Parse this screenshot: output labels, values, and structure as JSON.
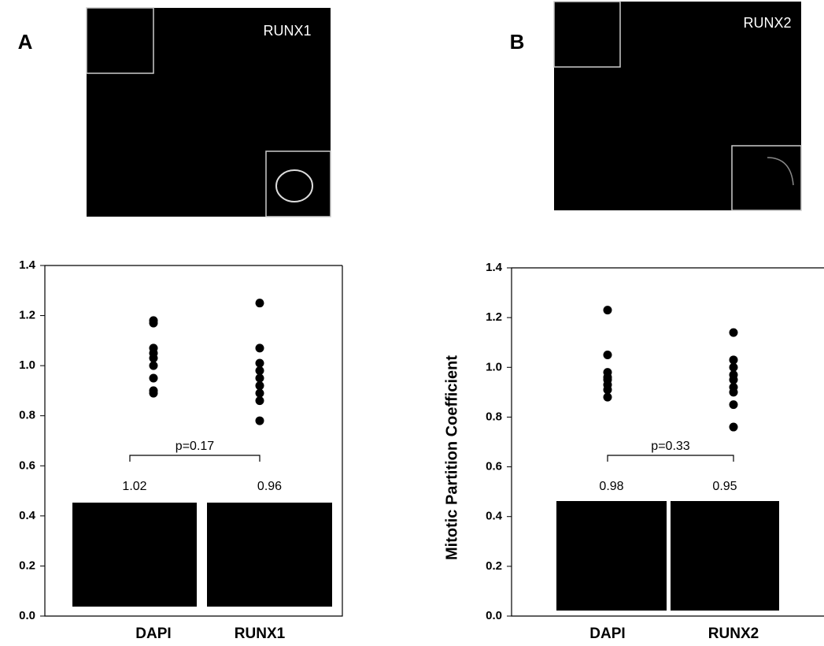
{
  "panel_labels": [
    "A",
    "B"
  ],
  "image_labels": [
    "RUNX1",
    "RUNX2"
  ],
  "chart_data": [
    {
      "type": "strip",
      "categories": [
        "DAPI",
        "RUNX1"
      ],
      "points": [
        [
          1.18,
          1.17,
          1.07,
          1.05,
          1.03,
          1.0,
          0.95,
          0.9,
          0.89
        ],
        [
          1.25,
          1.07,
          1.01,
          0.98,
          0.95,
          0.92,
          0.89,
          0.86,
          0.78
        ]
      ],
      "means": [
        1.02,
        0.96
      ],
      "annotation": "p=0.17",
      "color": "#000000",
      "ylim": [
        0,
        1.4
      ],
      "yticks": [
        {
          "value": 0,
          "label": "0.0"
        },
        0.2,
        0.4,
        0.6,
        0.8,
        {
          "value": 1,
          "label": "1.0"
        },
        1.2,
        1.4
      ]
    },
    {
      "type": "strip",
      "ylabel": "Mitotic Partition Coefficient",
      "categories": [
        "DAPI",
        "RUNX2"
      ],
      "points": [
        [
          1.23,
          1.05,
          0.98,
          0.96,
          0.95,
          0.93,
          0.91,
          0.88
        ],
        [
          1.14,
          1.03,
          1.0,
          0.97,
          0.95,
          0.92,
          0.9,
          0.85,
          0.76
        ]
      ],
      "means": [
        0.98,
        0.95
      ],
      "annotation": "p=0.33",
      "color": "#000000",
      "ylim": [
        0,
        1.4
      ],
      "yticks": [
        {
          "value": 0,
          "label": "0.0"
        },
        0.2,
        0.4,
        0.6,
        0.8,
        {
          "value": 1,
          "label": "1.0"
        },
        1.2,
        1.4
      ]
    }
  ]
}
